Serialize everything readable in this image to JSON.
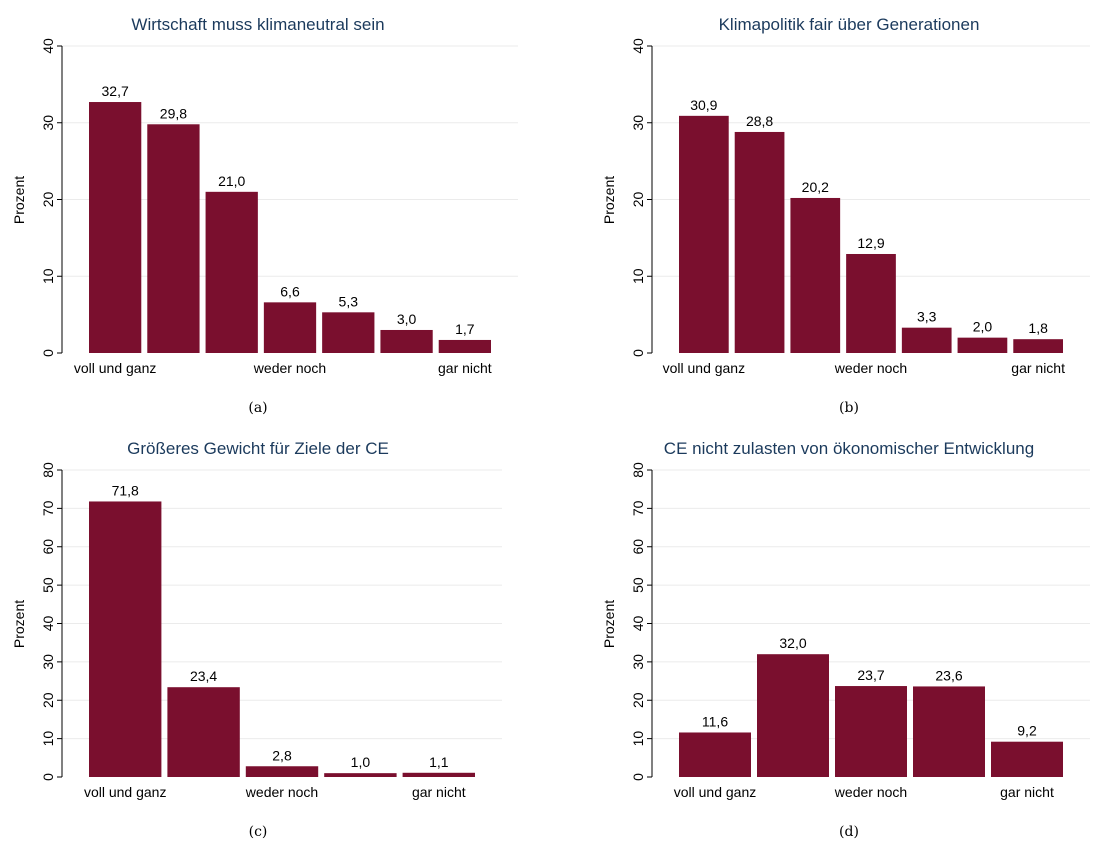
{
  "colors": {
    "bar": "#7a0f2e",
    "title": "#1b3a5c"
  },
  "chart_data": [
    {
      "type": "bar",
      "title": "Wirtschaft muss klimaneutral sein",
      "ylabel": "Prozent",
      "caption": "(a)",
      "ylim": [
        0,
        40
      ],
      "yticks": [
        0,
        10,
        20,
        30,
        40
      ],
      "values": [
        32.7,
        29.8,
        21.0,
        6.6,
        5.3,
        3.0,
        1.7
      ],
      "value_labels": [
        "32,7",
        "29,8",
        "21,0",
        "6,6",
        "5,3",
        "3,0",
        "1,7"
      ],
      "tick_labels": [
        {
          "index": 0,
          "text": "voll und ganz"
        },
        {
          "index": 3,
          "text": "weder noch"
        },
        {
          "index": 6,
          "text": "gar nicht"
        }
      ],
      "grid": true
    },
    {
      "type": "bar",
      "title": "Klimapolitik fair über Generationen",
      "ylabel": "Prozent",
      "caption": "(b)",
      "ylim": [
        0,
        40
      ],
      "yticks": [
        0,
        10,
        20,
        30,
        40
      ],
      "values": [
        30.9,
        28.8,
        20.2,
        12.9,
        3.3,
        2.0,
        1.8
      ],
      "value_labels": [
        "30,9",
        "28,8",
        "20,2",
        "12,9",
        "3,3",
        "2,0",
        "1,8"
      ],
      "tick_labels": [
        {
          "index": 0,
          "text": "voll und ganz"
        },
        {
          "index": 3,
          "text": "weder noch"
        },
        {
          "index": 6,
          "text": "gar nicht"
        }
      ],
      "grid": true
    },
    {
      "type": "bar",
      "title": "Größeres Gewicht für Ziele der CE",
      "ylabel": "Prozent",
      "caption": "(c)",
      "ylim": [
        0,
        80
      ],
      "yticks": [
        0,
        10,
        20,
        30,
        40,
        50,
        60,
        70,
        80
      ],
      "values": [
        71.8,
        23.4,
        2.8,
        1.0,
        1.1
      ],
      "value_labels": [
        "71,8",
        "23,4",
        "2,8",
        "1,0",
        "1,1"
      ],
      "tick_labels": [
        {
          "index": 0,
          "text": "voll und ganz"
        },
        {
          "index": 2,
          "text": "weder noch"
        },
        {
          "index": 4,
          "text": "gar nicht"
        }
      ],
      "grid": true
    },
    {
      "type": "bar",
      "title": "CE nicht zulasten von ökonomischer Entwicklung",
      "ylabel": "Prozent",
      "caption": "(d)",
      "ylim": [
        0,
        80
      ],
      "yticks": [
        0,
        10,
        20,
        30,
        40,
        50,
        60,
        70,
        80
      ],
      "values": [
        11.6,
        32.0,
        23.7,
        23.6,
        9.2
      ],
      "value_labels": [
        "11,6",
        "32,0",
        "23,7",
        "23,6",
        "9,2"
      ],
      "tick_labels": [
        {
          "index": 0,
          "text": "voll und ganz"
        },
        {
          "index": 2,
          "text": "weder noch"
        },
        {
          "index": 4,
          "text": "gar nicht"
        }
      ],
      "grid": true
    }
  ]
}
